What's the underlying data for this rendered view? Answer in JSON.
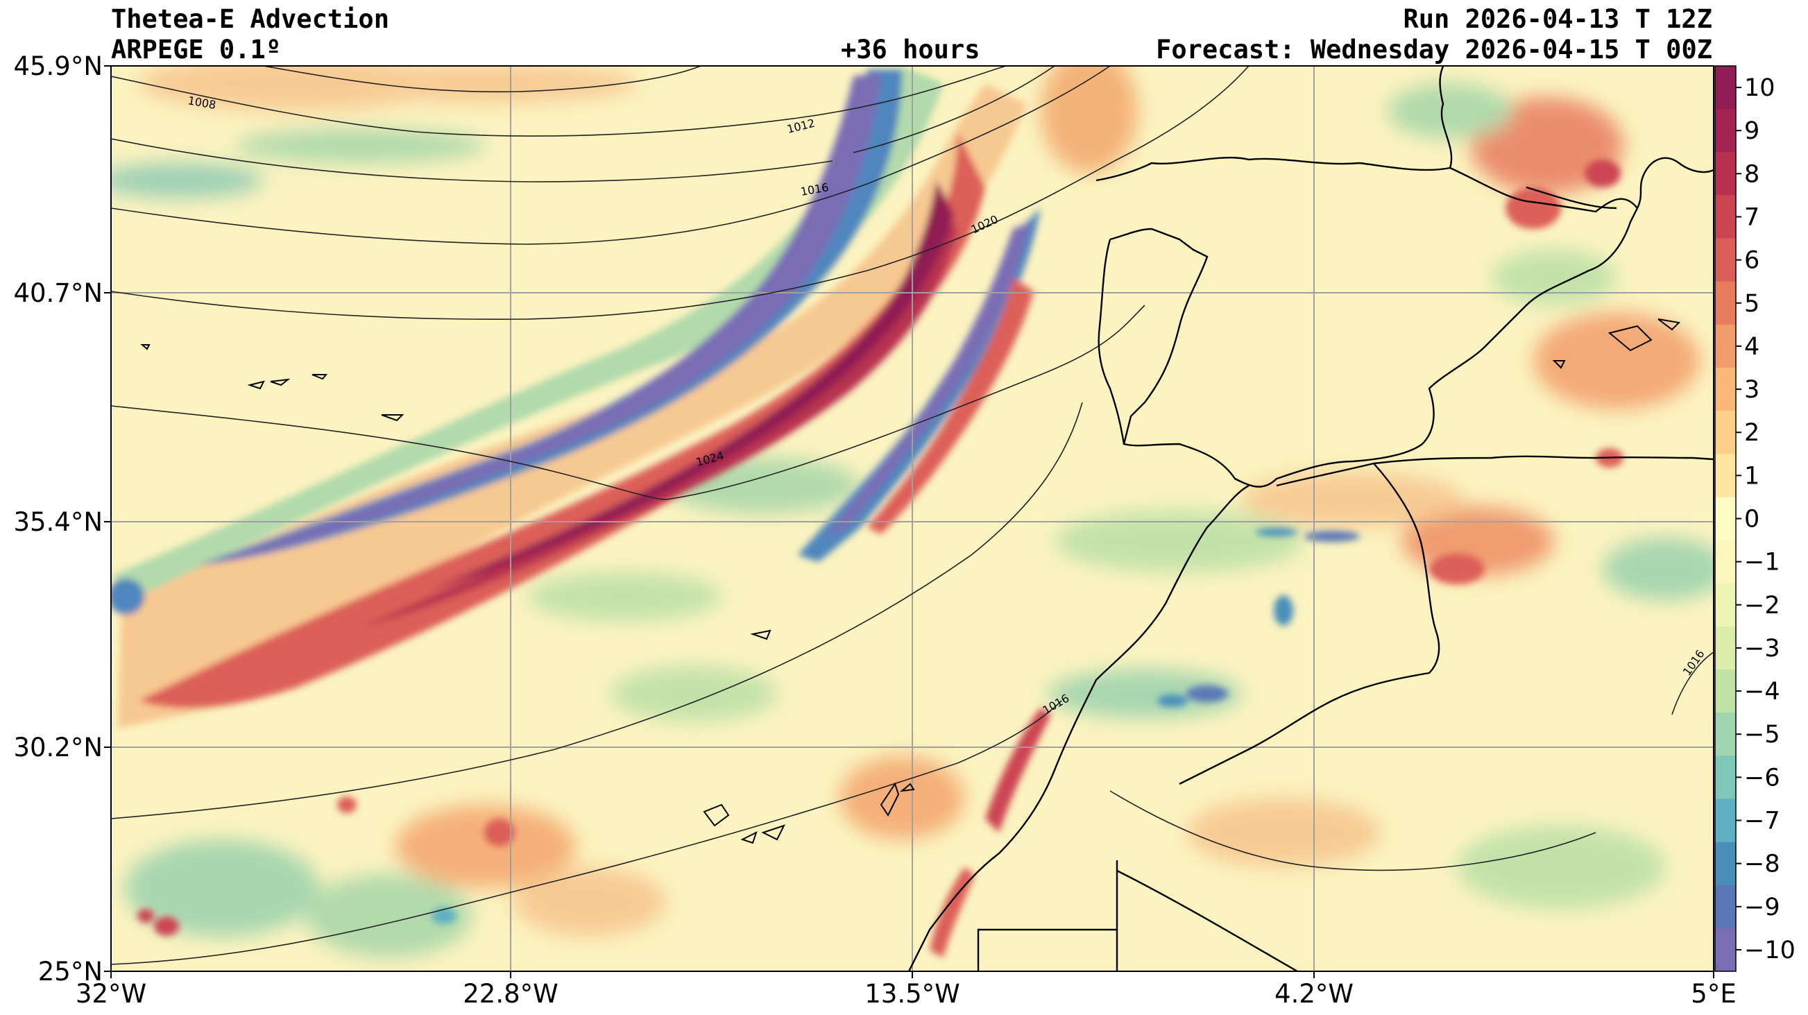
{
  "header": {
    "title": "Thetea-E Advection",
    "model": "ARPEGE 0.1º",
    "lead": "+36 hours",
    "run": "Run 2026-04-13 T 12Z",
    "forecast": "Forecast: Wednesday 2026-04-15 T 00Z"
  },
  "axes": {
    "lat_labels": [
      "45.9°N",
      "40.7°N",
      "35.4°N",
      "30.2°N",
      "25°N"
    ],
    "lon_labels": [
      "32°W",
      "22.8°W",
      "13.5°W",
      "4.2°W",
      "5°E"
    ]
  },
  "colorbar": {
    "labels": [
      "10",
      "9",
      "8",
      "7",
      "6",
      "5",
      "4",
      "3",
      "2",
      "1",
      "0",
      "−1",
      "−2",
      "−3",
      "−4",
      "−5",
      "−6",
      "−7",
      "−8",
      "−9",
      "−10"
    ],
    "colors": [
      "#7a6db5",
      "#5b78b6",
      "#4a8fbc",
      "#5fb0c2",
      "#7fc8b9",
      "#a0d5ae",
      "#c0e2a5",
      "#dcedab",
      "#eef4b4",
      "#fbf7be",
      "#fffbc4",
      "#fde6a0",
      "#fcd08a",
      "#f9b77a",
      "#f29c6c",
      "#e87c5f",
      "#dc5e58",
      "#cc4452",
      "#b83150",
      "#a32353",
      "#8f1c52"
    ]
  },
  "isobars": [
    "1008",
    "1012",
    "1016",
    "1020",
    "1024",
    "1016",
    "1016"
  ],
  "style": {
    "background": "#fbf3c0",
    "frame": "#000000",
    "grid": "#a0a0a0"
  }
}
